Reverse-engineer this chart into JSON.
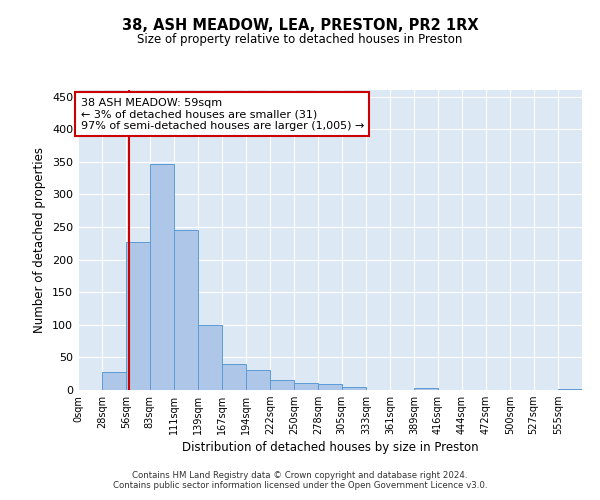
{
  "title1": "38, ASH MEADOW, LEA, PRESTON, PR2 1RX",
  "title2": "Size of property relative to detached houses in Preston",
  "xlabel": "Distribution of detached houses by size in Preston",
  "ylabel": "Number of detached properties",
  "bin_labels": [
    "0sqm",
    "28sqm",
    "56sqm",
    "83sqm",
    "111sqm",
    "139sqm",
    "167sqm",
    "194sqm",
    "222sqm",
    "250sqm",
    "278sqm",
    "305sqm",
    "333sqm",
    "361sqm",
    "389sqm",
    "416sqm",
    "444sqm",
    "472sqm",
    "500sqm",
    "527sqm",
    "555sqm"
  ],
  "bar_values": [
    0,
    27,
    227,
    347,
    246,
    100,
    40,
    30,
    15,
    10,
    9,
    4,
    0,
    0,
    3,
    0,
    0,
    0,
    0,
    0,
    1
  ],
  "bar_color": "#aec6e8",
  "bar_edge_color": "#5b9bd5",
  "bin_starts": [
    0,
    28,
    56,
    83,
    111,
    139,
    167,
    194,
    222,
    250,
    278,
    305,
    333,
    361,
    389,
    416,
    444,
    472,
    500,
    527,
    555
  ],
  "property_sqm": 59,
  "property_line_color": "#cc0000",
  "annotation_line1": "38 ASH MEADOW: 59sqm",
  "annotation_line2": "← 3% of detached houses are smaller (31)",
  "annotation_line3": "97% of semi-detached houses are larger (1,005) →",
  "annotation_box_color": "#ffffff",
  "annotation_box_edge": "#cc0000",
  "ylim": [
    0,
    460
  ],
  "yticks": [
    0,
    50,
    100,
    150,
    200,
    250,
    300,
    350,
    400,
    450
  ],
  "bg_color": "#dde8f5",
  "footer_text": "Contains HM Land Registry data © Crown copyright and database right 2024.\nContains public sector information licensed under the Open Government Licence v3.0."
}
